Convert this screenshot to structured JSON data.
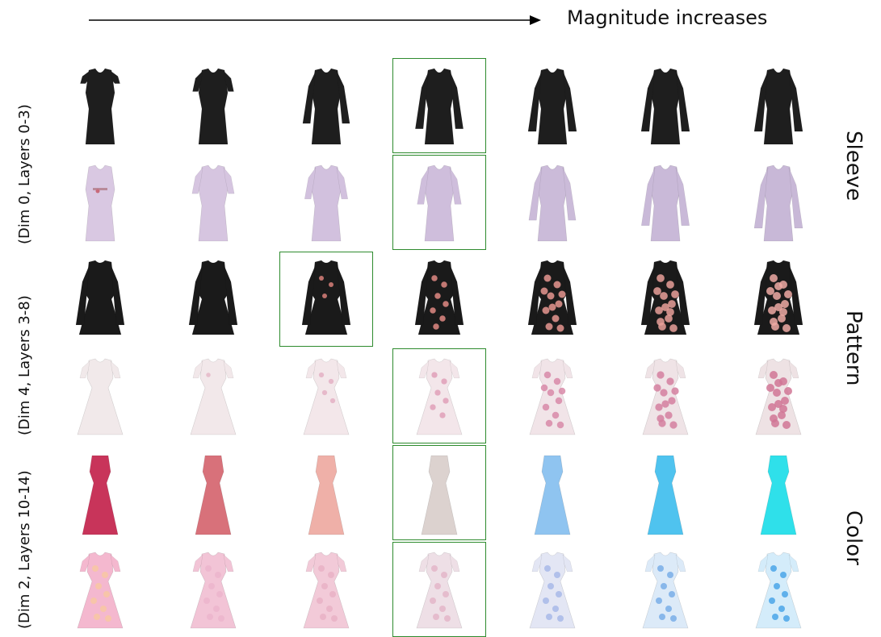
{
  "header": {
    "direction_label": "Magnitude increases"
  },
  "groups": [
    {
      "row_label": "(Dim 0,  Layers 0-3)",
      "attribute": "Sleeve"
    },
    {
      "row_label": "(Dim 4,  Layers 3-8)",
      "attribute": "Pattern"
    },
    {
      "row_label": "(Dim 2,  Layers 10-14)",
      "attribute": "Color"
    }
  ],
  "rows": [
    {
      "garment": "dress-black",
      "selected_column": 3,
      "images": [
        {
          "icon": "dress-cap-sleeve",
          "color": "#1e1e1e",
          "sleeve": 0.1
        },
        {
          "icon": "dress-short-sleeve",
          "color": "#1e1e1e",
          "sleeve": 0.25
        },
        {
          "icon": "dress-long-sleeve",
          "color": "#1e1e1e",
          "sleeve": 0.85
        },
        {
          "icon": "dress-long-sleeve",
          "color": "#1e1e1e",
          "sleeve": 0.95
        },
        {
          "icon": "dress-long-sleeve",
          "color": "#1e1e1e",
          "sleeve": 1.0
        },
        {
          "icon": "dress-long-sleeve",
          "color": "#1e1e1e",
          "sleeve": 1.0
        },
        {
          "icon": "dress-long-sleeve",
          "color": "#1e1e1e",
          "sleeve": 1.0
        }
      ]
    },
    {
      "garment": "dress-lilac",
      "selected_column": 3,
      "images": [
        {
          "icon": "dress-strapless",
          "color": "#d9c8e2",
          "sleeve": 0.0
        },
        {
          "icon": "dress-puff-sleeve",
          "color": "#d6c5e0",
          "sleeve": 0.35
        },
        {
          "icon": "dress-puff-sleeve",
          "color": "#d2c1de",
          "sleeve": 0.45
        },
        {
          "icon": "dress-puff-sleeve",
          "color": "#cfbedc",
          "sleeve": 0.55
        },
        {
          "icon": "dress-long-sleeve",
          "color": "#cbbbd9",
          "sleeve": 0.85
        },
        {
          "icon": "dress-long-sleeve",
          "color": "#c9b9d8",
          "sleeve": 0.95
        },
        {
          "icon": "dress-long-sleeve",
          "color": "#c8b8d7",
          "sleeve": 1.0
        }
      ]
    },
    {
      "garment": "coat-dress-black",
      "selected_column": 2,
      "images": [
        {
          "icon": "coat-dress",
          "color": "#1a1a1a",
          "pattern": 0.0,
          "accent": "#d9807a"
        },
        {
          "icon": "coat-dress",
          "color": "#1a1a1a",
          "pattern": 0.0,
          "accent": "#d9807a"
        },
        {
          "icon": "coat-dress-floral",
          "color": "#1a1a1a",
          "pattern": 0.2,
          "accent": "#d9807a"
        },
        {
          "icon": "coat-dress-floral",
          "color": "#1a1a1a",
          "pattern": 0.5,
          "accent": "#e08a84"
        },
        {
          "icon": "coat-dress-floral",
          "color": "#1a1a1a",
          "pattern": 0.8,
          "accent": "#e69690"
        },
        {
          "icon": "coat-dress-floral",
          "color": "#1a1a1a",
          "pattern": 0.95,
          "accent": "#e9a09a"
        },
        {
          "icon": "coat-dress-floral",
          "color": "#1a1a1a",
          "pattern": 1.0,
          "accent": "#eeaaa4"
        }
      ]
    },
    {
      "garment": "dress-pale-floral",
      "selected_column": 3,
      "images": [
        {
          "icon": "flare-dress",
          "color": "#f1e9ea",
          "pattern": 0.0,
          "accent": "#e5b8c8"
        },
        {
          "icon": "flare-dress",
          "color": "#f2e8ea",
          "pattern": 0.1,
          "accent": "#e5b8c8"
        },
        {
          "icon": "flare-dress",
          "color": "#f3e7ea",
          "pattern": 0.25,
          "accent": "#e3b0c4"
        },
        {
          "icon": "flare-dress-floral",
          "color": "#f3e6ea",
          "pattern": 0.45,
          "accent": "#df9fb8"
        },
        {
          "icon": "flare-dress-floral",
          "color": "#f1e4e8",
          "pattern": 0.7,
          "accent": "#d88aa8"
        },
        {
          "icon": "flare-dress-floral",
          "color": "#efe3e6",
          "pattern": 0.85,
          "accent": "#d47f9f"
        },
        {
          "icon": "flare-dress-floral",
          "color": "#eee2e4",
          "pattern": 1.0,
          "accent": "#d07595"
        }
      ]
    },
    {
      "garment": "gown",
      "selected_column": 3,
      "images": [
        {
          "icon": "maxi-gown",
          "color": "#c8345a"
        },
        {
          "icon": "maxi-gown",
          "color": "#d8717a"
        },
        {
          "icon": "maxi-gown",
          "color": "#efb0a8"
        },
        {
          "icon": "maxi-gown",
          "color": "#dcd2cf"
        },
        {
          "icon": "maxi-gown",
          "color": "#8fc4f0"
        },
        {
          "icon": "maxi-gown",
          "color": "#4fc3ef"
        },
        {
          "icon": "maxi-gown",
          "color": "#2fe0ea"
        }
      ]
    },
    {
      "garment": "dress-print",
      "selected_column": 3,
      "images": [
        {
          "icon": "flare-dress-floral",
          "color": "#f4b8cf",
          "pattern": 0.6,
          "accent": "#f7c7a2"
        },
        {
          "icon": "flare-dress-floral",
          "color": "#f2c4d6",
          "pattern": 0.6,
          "accent": "#ecb5cc"
        },
        {
          "icon": "flare-dress-floral",
          "color": "#f2cad8",
          "pattern": 0.6,
          "accent": "#e9b2c6"
        },
        {
          "icon": "flare-dress-floral",
          "color": "#eedfe6",
          "pattern": 0.6,
          "accent": "#e3b6c8"
        },
        {
          "icon": "flare-dress-floral",
          "color": "#e3e6f4",
          "pattern": 0.6,
          "accent": "#a8b8e8"
        },
        {
          "icon": "flare-dress-floral",
          "color": "#dceaf8",
          "pattern": 0.6,
          "accent": "#79aee8"
        },
        {
          "icon": "flare-dress-floral",
          "color": "#d4ecfa",
          "pattern": 0.6,
          "accent": "#4aa6e8"
        }
      ]
    }
  ]
}
